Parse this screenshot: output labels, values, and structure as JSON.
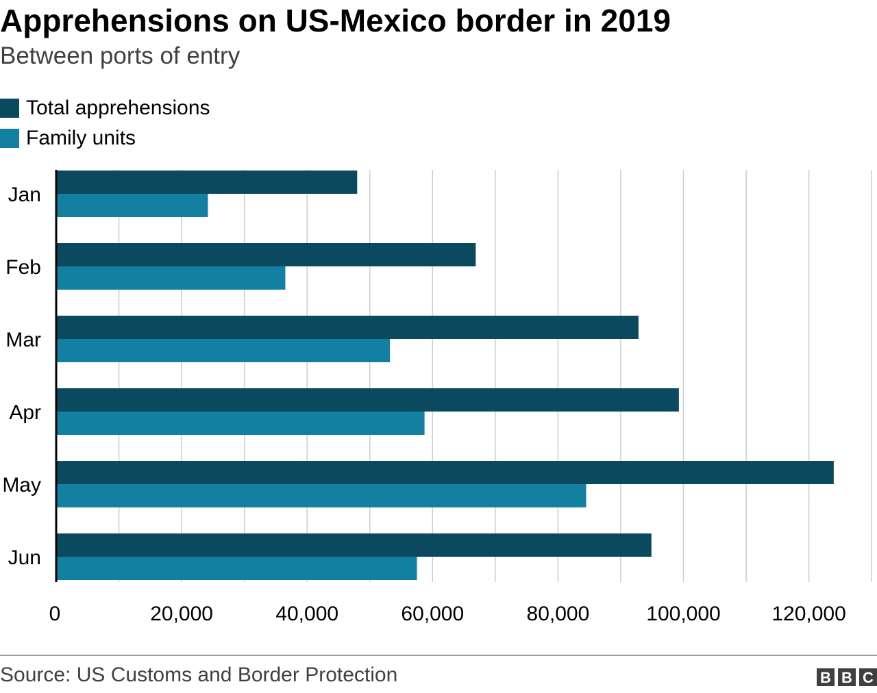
{
  "title": "Apprehensions on US-Mexico border in 2019",
  "subtitle": "Between ports of entry",
  "source": "Source: US Customs and Border Protection",
  "logo_text": "BBC",
  "colors": {
    "total": "#0b4a5e",
    "family": "#1380a1",
    "grid": "#cccccc",
    "axis": "#000000"
  },
  "chart_data": {
    "type": "bar",
    "orientation": "horizontal",
    "categories": [
      "Jan",
      "Feb",
      "Mar",
      "Apr",
      "May",
      "Jun"
    ],
    "series": [
      {
        "name": "Total apprehensions",
        "values": [
          47986,
          66884,
          92835,
          99273,
          123961,
          94897
        ]
      },
      {
        "name": "Family units",
        "values": [
          24189,
          36531,
          53205,
          58722,
          84486,
          57511
        ]
      }
    ],
    "xlim": [
      0,
      130000
    ],
    "x_ticks": [
      0,
      20000,
      40000,
      60000,
      80000,
      100000,
      120000
    ],
    "x_tick_labels": [
      "0",
      "20,000",
      "40,000",
      "60,000",
      "80,000",
      "100,000",
      "120,000"
    ],
    "grid": true,
    "legend_position": "top-left"
  }
}
